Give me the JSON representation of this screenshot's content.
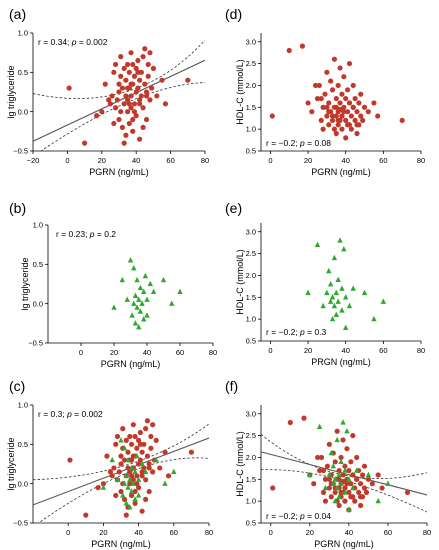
{
  "chart_data": [
    {
      "panel": "(a)",
      "type": "scatter",
      "xlabel": "PGRN (ng/mL)",
      "ylabel": "lg triglyceride",
      "xlim": [
        -20,
        80
      ],
      "ylim": [
        -0.5,
        1.0
      ],
      "xticks": [
        "−20",
        "0",
        "20",
        "40",
        "60",
        "80"
      ],
      "yticks": [
        "−0.5",
        "0.0",
        "0.5",
        "1.0"
      ],
      "annotation": {
        "r": "r = 0.34; ",
        "p_label": "p",
        "p": " = 0.002"
      },
      "regression": {
        "slope": 0.0103,
        "intercept": -0.17
      },
      "ci": [
        {
          "x": -20,
          "lower": -0.57,
          "upper": 0.23
        },
        {
          "x": 35,
          "lower": 0.12,
          "upper": 0.26
        },
        {
          "x": 80,
          "lower": 0.37,
          "upper": 0.91
        }
      ],
      "series": [
        {
          "marker": "circle",
          "color": "#c0392b",
          "x": [
            1,
            10,
            17,
            20,
            22,
            25,
            26,
            27,
            28,
            28,
            29,
            30,
            30,
            31,
            31,
            32,
            32,
            33,
            33,
            34,
            34,
            34,
            35,
            35,
            35,
            36,
            36,
            36,
            37,
            37,
            37,
            38,
            38,
            38,
            39,
            39,
            40,
            40,
            40,
            41,
            41,
            42,
            42,
            42,
            43,
            43,
            44,
            44,
            45,
            45,
            46,
            46,
            47,
            47,
            48,
            48,
            49,
            50,
            52,
            55,
            57,
            70,
            30,
            33,
            36,
            39,
            41,
            44,
            27,
            31,
            35,
            38,
            42,
            46,
            24,
            37
          ],
          "y": [
            0.3,
            -0.4,
            -0.05,
            0.0,
            0.35,
            0.1,
            0.2,
            0.5,
            0.6,
            0.05,
            0.15,
            0.25,
            -0.1,
            0.45,
            0.7,
            0.3,
            -0.2,
            0.55,
            0.1,
            0.2,
            0.4,
            -0.3,
            0.6,
            0.15,
            0.0,
            0.3,
            0.5,
            -0.15,
            0.2,
            0.75,
            0.05,
            0.35,
            0.6,
            -0.25,
            0.1,
            0.45,
            0.25,
            0.55,
            -0.05,
            0.3,
            0.65,
            0.15,
            0.4,
            -0.35,
            0.2,
            0.5,
            0.7,
            0.05,
            0.35,
            0.8,
            0.25,
            -0.1,
            0.6,
            0.45,
            0.15,
            0.75,
            0.3,
            0.55,
            0.2,
            0.4,
            0.1,
            0.4,
            0.35,
            -0.4,
            0.1,
            0.0,
            0.5,
            -0.2,
            -0.15,
            0.0,
            0.3,
            -0.1,
            0.1,
            0.2,
            0.15,
            0.35
          ]
        }
      ]
    },
    {
      "panel": "(b)",
      "type": "scatter",
      "xlabel": "PGRN (ng/mL)",
      "ylabel": "lg triglyceride",
      "xlim": [
        -20,
        80
      ],
      "ylim": [
        -0.5,
        1.0
      ],
      "xticks": [
        "0",
        "20",
        "40",
        "60",
        "80"
      ],
      "yticks": [
        "−0.5",
        "0.0",
        "0.5",
        "1.0"
      ],
      "annotation": {
        "r": "r = 0.23; ",
        "p_label": "p",
        "p": " = 0.2"
      },
      "series": [
        {
          "marker": "triangle",
          "color": "#2eaa2e",
          "x": [
            20,
            25,
            28,
            30,
            31,
            32,
            32,
            33,
            33,
            34,
            34,
            35,
            35,
            36,
            36,
            37,
            38,
            38,
            39,
            40,
            40,
            42,
            44,
            50,
            55,
            60
          ],
          "y": [
            -0.05,
            0.3,
            0.05,
            0.55,
            -0.15,
            0.45,
            0.0,
            -0.25,
            0.1,
            -0.05,
            0.3,
            0.05,
            -0.3,
            0.2,
            -0.1,
            0.0,
            0.15,
            -0.2,
            0.35,
            0.05,
            -0.15,
            0.25,
            0.15,
            0.3,
            0.0,
            0.15
          ]
        }
      ]
    },
    {
      "panel": "(c)",
      "type": "scatter",
      "xlabel": "PGRN (ng/mL)",
      "ylabel": "lg triglyceride",
      "xlim": [
        -20,
        80
      ],
      "ylim": [
        -0.5,
        1.0
      ],
      "xticks": [
        "0",
        "20",
        "40",
        "60",
        "80"
      ],
      "yticks": [
        "−0.5",
        "0.0",
        "0.5",
        "1.0"
      ],
      "annotation": {
        "r": "r = 0.3; ",
        "p_label": "p",
        "p": " = 0.002"
      },
      "regression": {
        "slope": 0.0085,
        "intercept": -0.1
      },
      "ci": [
        {
          "x": -20,
          "lower": -0.55,
          "upper": 0.05
        },
        {
          "x": 35,
          "lower": 0.15,
          "upper": 0.25
        },
        {
          "x": 80,
          "lower": 0.32,
          "upper": 0.76
        }
      ],
      "series": [
        {
          "marker": "circle",
          "color": "#c0392b",
          "x": [
            1,
            10,
            17,
            20,
            22,
            25,
            26,
            27,
            28,
            28,
            29,
            30,
            30,
            31,
            31,
            32,
            32,
            33,
            33,
            34,
            34,
            34,
            35,
            35,
            35,
            36,
            36,
            36,
            37,
            37,
            37,
            38,
            38,
            38,
            39,
            39,
            40,
            40,
            40,
            41,
            41,
            42,
            42,
            42,
            43,
            43,
            44,
            44,
            45,
            45,
            46,
            46,
            47,
            47,
            48,
            48,
            49,
            50,
            52,
            55,
            57,
            70,
            30,
            33,
            36,
            39,
            41,
            44,
            27,
            31,
            35,
            38,
            42,
            46,
            24,
            37
          ],
          "y": [
            0.3,
            -0.4,
            -0.05,
            0.0,
            0.35,
            0.1,
            0.2,
            0.5,
            0.6,
            0.05,
            0.15,
            0.25,
            -0.1,
            0.45,
            0.7,
            0.3,
            -0.2,
            0.55,
            0.1,
            0.2,
            0.4,
            -0.3,
            0.6,
            0.15,
            0.0,
            0.3,
            0.5,
            -0.15,
            0.2,
            0.75,
            0.05,
            0.35,
            0.6,
            -0.25,
            0.1,
            0.45,
            0.25,
            0.55,
            -0.05,
            0.3,
            0.65,
            0.15,
            0.4,
            -0.35,
            0.2,
            0.5,
            0.7,
            0.05,
            0.35,
            0.8,
            0.25,
            -0.1,
            0.6,
            0.45,
            0.15,
            0.75,
            0.3,
            0.55,
            0.2,
            0.4,
            0.1,
            0.4,
            0.35,
            -0.4,
            0.1,
            0.0,
            0.5,
            -0.2,
            -0.15,
            0.0,
            0.3,
            -0.1,
            0.1,
            0.2,
            0.15,
            0.35
          ]
        },
        {
          "marker": "triangle",
          "color": "#2eaa2e",
          "x": [
            20,
            25,
            28,
            30,
            31,
            32,
            32,
            33,
            33,
            34,
            34,
            35,
            35,
            36,
            36,
            37,
            38,
            38,
            39,
            40,
            40,
            42,
            44,
            50,
            55,
            60
          ],
          "y": [
            -0.05,
            0.3,
            0.05,
            0.55,
            -0.15,
            0.45,
            0.0,
            -0.25,
            0.1,
            -0.05,
            0.3,
            0.05,
            -0.3,
            0.2,
            -0.1,
            0.0,
            0.15,
            -0.2,
            0.35,
            0.05,
            -0.15,
            0.25,
            0.15,
            0.3,
            0.0,
            0.15
          ]
        }
      ]
    },
    {
      "panel": "(d)",
      "type": "scatter",
      "xlabel": "PGRN (ng/mL)",
      "ylabel": "HDL-C (mmol/L)",
      "xlim": [
        -5,
        80
      ],
      "ylim": [
        0.5,
        3.2
      ],
      "xticks": [
        "0",
        "20",
        "40",
        "60",
        "80"
      ],
      "yticks": [
        "0.5",
        "1.0",
        "1.5",
        "2.0",
        "2.5",
        "3.0"
      ],
      "annotation": {
        "r": "r = −0.2; ",
        "p_label": "p",
        "p": " = 0.08"
      },
      "series": [
        {
          "marker": "circle",
          "color": "#c0392b",
          "x": [
            1,
            10,
            17,
            20,
            22,
            25,
            26,
            27,
            28,
            28,
            29,
            30,
            30,
            31,
            31,
            32,
            32,
            33,
            33,
            34,
            34,
            34,
            35,
            35,
            35,
            36,
            36,
            36,
            37,
            37,
            37,
            38,
            38,
            38,
            39,
            39,
            40,
            40,
            40,
            41,
            41,
            42,
            42,
            42,
            43,
            43,
            44,
            44,
            45,
            45,
            46,
            46,
            47,
            47,
            48,
            48,
            49,
            50,
            52,
            55,
            57,
            70,
            30,
            33,
            36,
            39,
            41,
            44,
            27,
            31,
            35,
            38,
            42,
            46,
            24,
            37
          ],
          "y": [
            1.3,
            2.8,
            2.9,
            1.6,
            1.4,
            1.7,
            2.0,
            1.2,
            1.5,
            1.0,
            1.8,
            1.3,
            2.3,
            1.1,
            1.6,
            1.4,
            2.1,
            1.2,
            1.9,
            1.5,
            1.0,
            2.6,
            1.3,
            1.7,
            0.9,
            1.4,
            2.0,
            1.1,
            1.6,
            1.2,
            2.4,
            1.3,
            1.8,
            1.0,
            1.5,
            2.2,
            1.2,
            1.7,
            0.8,
            1.4,
            1.9,
            1.1,
            1.6,
            2.5,
            1.3,
            1.0,
            1.5,
            2.0,
            1.2,
            1.7,
            1.4,
            0.9,
            1.6,
            1.1,
            1.3,
            1.8,
            1.2,
            1.5,
            1.4,
            1.6,
            1.3,
            1.2,
            1.5,
            1.3,
            1.2,
            1.4,
            1.1,
            1.5,
            1.7,
            1.4,
            1.5,
            1.3,
            1.6,
            1.1,
            2.0,
            1.45
          ]
        }
      ]
    },
    {
      "panel": "(e)",
      "type": "scatter",
      "xlabel": "PRGN (ng/mL)",
      "ylabel": "HDL-C (mmol/L)",
      "xlim": [
        -5,
        80
      ],
      "ylim": [
        0.5,
        3.2
      ],
      "xticks": [
        "0",
        "20",
        "40",
        "60",
        "80"
      ],
      "yticks": [
        "0.5",
        "1.0",
        "1.5",
        "2.0",
        "2.5",
        "3.0"
      ],
      "annotation": {
        "r": "r = −0.2; ",
        "p_label": "p",
        "p": " = 0.3"
      },
      "series": [
        {
          "marker": "triangle",
          "color": "#2eaa2e",
          "x": [
            20,
            25,
            28,
            30,
            31,
            32,
            32,
            33,
            33,
            34,
            34,
            35,
            35,
            36,
            36,
            37,
            38,
            38,
            39,
            40,
            40,
            42,
            44,
            50,
            55,
            60
          ],
          "y": [
            1.6,
            2.7,
            1.3,
            1.6,
            2.1,
            1.4,
            1.8,
            1.0,
            1.5,
            1.3,
            2.4,
            1.6,
            1.1,
            1.9,
            1.4,
            2.8,
            1.7,
            1.2,
            2.6,
            1.5,
            0.8,
            1.3,
            1.7,
            1.6,
            1.0,
            1.4
          ]
        }
      ]
    },
    {
      "panel": "(f)",
      "type": "scatter",
      "xlabel": "PGRN (ng/mL)",
      "ylabel": "HDL-C (mmol/L)",
      "xlim": [
        -5,
        80
      ],
      "ylim": [
        0.5,
        3.2
      ],
      "xticks": [
        "0",
        "20",
        "40",
        "60",
        "80"
      ],
      "yticks": [
        "0.5",
        "1.0",
        "1.5",
        "2.0",
        "2.5",
        "3.0"
      ],
      "annotation": {
        "r": "r = −0.2; ",
        "p_label": "p",
        "p": " = 0.04"
      },
      "regression": {
        "slope": -0.0116,
        "intercept": 2.07
      },
      "ci": [
        {
          "x": -5,
          "lower": 1.72,
          "upper": 2.53
        },
        {
          "x": 35,
          "lower": 1.5,
          "upper": 1.62
        },
        {
          "x": 80,
          "lower": 0.75,
          "upper": 1.65
        }
      ],
      "series": [
        {
          "marker": "circle",
          "color": "#c0392b",
          "x": [
            1,
            10,
            17,
            20,
            22,
            25,
            26,
            27,
            28,
            28,
            29,
            30,
            30,
            31,
            31,
            32,
            32,
            33,
            33,
            34,
            34,
            34,
            35,
            35,
            35,
            36,
            36,
            36,
            37,
            37,
            37,
            38,
            38,
            38,
            39,
            39,
            40,
            40,
            40,
            41,
            41,
            42,
            42,
            42,
            43,
            43,
            44,
            44,
            45,
            45,
            46,
            46,
            47,
            47,
            48,
            48,
            49,
            50,
            52,
            55,
            57,
            70,
            30,
            33,
            36,
            39,
            41,
            44,
            27,
            31,
            35,
            38,
            42,
            46,
            24,
            37
          ],
          "y": [
            1.3,
            2.8,
            2.9,
            1.6,
            1.4,
            1.7,
            2.0,
            1.2,
            1.5,
            1.0,
            1.8,
            1.3,
            2.3,
            1.1,
            1.6,
            1.4,
            2.1,
            1.2,
            1.9,
            1.5,
            1.0,
            2.6,
            1.3,
            1.7,
            0.9,
            1.4,
            2.0,
            1.1,
            1.6,
            1.2,
            2.4,
            1.3,
            1.8,
            1.0,
            1.5,
            2.2,
            1.2,
            1.7,
            0.8,
            1.4,
            1.9,
            1.1,
            1.6,
            2.5,
            1.3,
            1.0,
            1.5,
            2.0,
            1.2,
            1.7,
            1.4,
            0.9,
            1.6,
            1.1,
            1.3,
            1.8,
            1.2,
            1.5,
            1.4,
            1.6,
            1.3,
            1.2,
            1.5,
            1.3,
            1.2,
            1.4,
            1.1,
            1.5,
            1.7,
            1.4,
            1.5,
            1.3,
            1.6,
            1.1,
            2.0,
            1.45
          ]
        },
        {
          "marker": "triangle",
          "color": "#2eaa2e",
          "x": [
            20,
            25,
            28,
            30,
            31,
            32,
            32,
            33,
            33,
            34,
            34,
            35,
            35,
            36,
            36,
            37,
            38,
            38,
            39,
            40,
            40,
            42,
            44,
            50,
            55,
            60
          ],
          "y": [
            1.6,
            2.7,
            1.3,
            1.6,
            2.1,
            1.4,
            1.8,
            1.0,
            1.5,
            1.3,
            2.4,
            1.6,
            1.1,
            1.9,
            1.4,
            2.8,
            1.7,
            1.2,
            2.6,
            1.5,
            0.8,
            1.3,
            1.7,
            1.6,
            1.0,
            1.4
          ]
        }
      ]
    }
  ]
}
